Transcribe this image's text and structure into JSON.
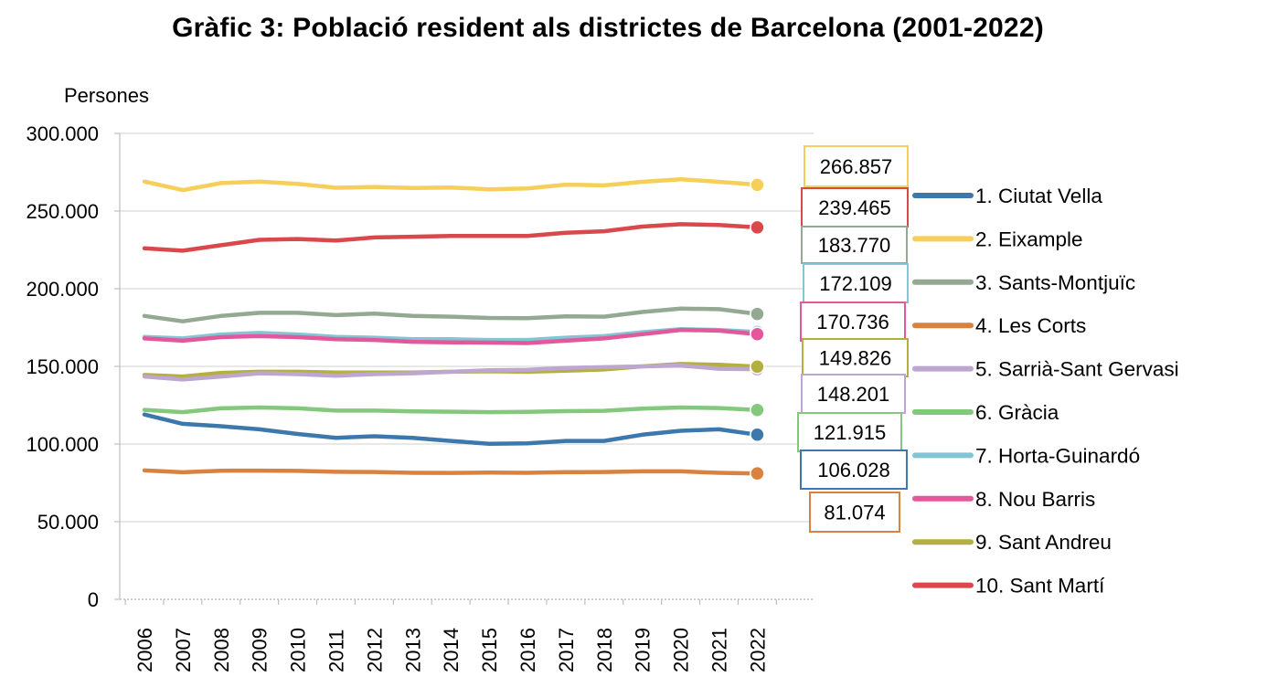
{
  "chart_data": {
    "type": "line",
    "title": "Gràfic 3: Població resident als districtes de Barcelona (2001-2022)",
    "ylabel": "Persones",
    "xlabel": "",
    "ylim": [
      0,
      300000
    ],
    "y_ticks": [
      {
        "value": 0,
        "label": "0"
      },
      {
        "value": 50000,
        "label": "50.000"
      },
      {
        "value": 100000,
        "label": "100.000"
      },
      {
        "value": 150000,
        "label": "150.000"
      },
      {
        "value": 200000,
        "label": "200.000"
      },
      {
        "value": 250000,
        "label": "250.000"
      },
      {
        "value": 300000,
        "label": "300.000"
      }
    ],
    "x": [
      "2006",
      "2007",
      "2008",
      "2009",
      "2010",
      "2011",
      "2012",
      "2013",
      "2014",
      "2015",
      "2016",
      "2017",
      "2018",
      "2019",
      "2020",
      "2021",
      "2022"
    ],
    "grid": true,
    "legend_position": "right",
    "series": [
      {
        "name": "1. Ciutat Vella",
        "color": "#3d78ad",
        "values": [
          119000,
          113000,
          111500,
          109500,
          106500,
          104000,
          105000,
          104000,
          102000,
          100200,
          100400,
          102000,
          102000,
          106000,
          108500,
          109500,
          106028
        ],
        "end_label": "106.028"
      },
      {
        "name": "2. Eixample",
        "color": "#f5cf5a",
        "values": [
          269000,
          263500,
          268000,
          269000,
          267500,
          265000,
          265500,
          264800,
          265200,
          264000,
          264500,
          267000,
          266500,
          268800,
          270500,
          268800,
          266857
        ],
        "end_label": "266.857"
      },
      {
        "name": "3. Sants-Montjuïc",
        "color": "#93a992",
        "values": [
          182500,
          179000,
          182500,
          184500,
          184500,
          183000,
          184000,
          182500,
          182000,
          181200,
          181000,
          182200,
          182000,
          185000,
          187200,
          186800,
          183770
        ],
        "end_label": "183.770"
      },
      {
        "name": "4. Les Corts",
        "color": "#d9823f",
        "values": [
          83000,
          81800,
          82800,
          82900,
          82700,
          82100,
          82000,
          81500,
          81400,
          81600,
          81500,
          81900,
          82000,
          82400,
          82400,
          81500,
          81074
        ],
        "end_label": "81.074"
      },
      {
        "name": "5. Sarrià-Sant Gervasi",
        "color": "#bda6cf",
        "values": [
          143500,
          141500,
          143500,
          145500,
          145000,
          144000,
          145000,
          145500,
          146500,
          147500,
          147800,
          149000,
          149500,
          150000,
          150500,
          148500,
          148201
        ],
        "end_label": "148.201"
      },
      {
        "name": "6. Gràcia",
        "color": "#84c87d",
        "values": [
          122000,
          120500,
          123000,
          123500,
          123000,
          121500,
          121500,
          121000,
          120800,
          120500,
          120700,
          121200,
          121400,
          122800,
          123500,
          123200,
          121915
        ],
        "end_label": "121.915"
      },
      {
        "name": "7. Horta-Guinardó",
        "color": "#84c5d5",
        "values": [
          169000,
          168000,
          170500,
          171500,
          170500,
          169000,
          168500,
          167500,
          167500,
          167000,
          167000,
          168500,
          169500,
          172000,
          174000,
          173500,
          172109
        ],
        "end_label": "172.109"
      },
      {
        "name": "8. Nou Barris",
        "color": "#e2589b",
        "values": [
          168000,
          166500,
          168800,
          169500,
          168800,
          167500,
          167000,
          165800,
          165500,
          165300,
          165000,
          166500,
          168000,
          170700,
          173500,
          173000,
          170736
        ],
        "end_label": "170.736"
      },
      {
        "name": "9. Sant Andreu",
        "color": "#b5b03e",
        "values": [
          144500,
          143500,
          145800,
          146500,
          146500,
          146000,
          146000,
          146000,
          146500,
          146800,
          146500,
          147200,
          148000,
          150000,
          151500,
          151000,
          149826
        ],
        "end_label": "149.826"
      },
      {
        "name": "10. Sant Martí",
        "color": "#d9484b",
        "values": [
          226000,
          224500,
          228000,
          231500,
          232000,
          231000,
          233000,
          233500,
          234000,
          234000,
          234000,
          236000,
          237000,
          240000,
          241500,
          241000,
          239465
        ],
        "end_label": "239.465"
      }
    ]
  }
}
